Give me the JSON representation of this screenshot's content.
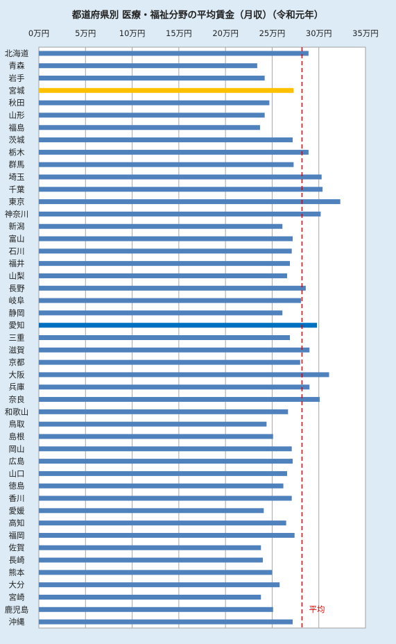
{
  "chart_data": {
    "type": "bar",
    "orientation": "horizontal",
    "title": "都道府県別 医療・福祉分野の平均賃金（月収）（令和元年）",
    "xlabel": "",
    "ylabel": "",
    "xlim": [
      0,
      350000
    ],
    "tick_values": [
      0,
      50000,
      100000,
      150000,
      200000,
      250000,
      300000,
      350000
    ],
    "tick_labels": [
      "0万円",
      "5万円",
      "10万円",
      "15万円",
      "20万円",
      "25万円",
      "30万円",
      "35万円"
    ],
    "grid": true,
    "categories": [
      "北海道",
      "青森",
      "岩手",
      "宮城",
      "秋田",
      "山形",
      "福島",
      "茨城",
      "栃木",
      "群馬",
      "埼玉",
      "千葉",
      "東京",
      "神奈川",
      "新潟",
      "富山",
      "石川",
      "福井",
      "山梨",
      "長野",
      "岐阜",
      "静岡",
      "愛知",
      "三重",
      "滋賀",
      "京都",
      "大阪",
      "兵庫",
      "奈良",
      "和歌山",
      "鳥取",
      "島根",
      "岡山",
      "広島",
      "山口",
      "徳島",
      "香川",
      "愛媛",
      "高知",
      "福岡",
      "佐賀",
      "長崎",
      "熊本",
      "大分",
      "宮崎",
      "鹿児島",
      "沖縄"
    ],
    "values": [
      289000,
      234000,
      242000,
      273000,
      247000,
      242000,
      237000,
      272000,
      289000,
      273000,
      303000,
      304000,
      323000,
      302000,
      261000,
      272000,
      271000,
      269000,
      266000,
      286000,
      281000,
      261000,
      298000,
      269000,
      290000,
      280000,
      311000,
      290000,
      301000,
      267000,
      244000,
      251000,
      271000,
      272000,
      266000,
      262000,
      271000,
      241000,
      265000,
      274000,
      238000,
      240000,
      250000,
      258000,
      238000,
      251000,
      272000
    ],
    "bar_colors": {
      "default": "#4f81bd",
      "宮城": "#ffc000",
      "愛知": "#0070c0"
    },
    "reference_line": {
      "label": "平均",
      "value": 282000,
      "color": "#e00000",
      "style": "dashed"
    }
  }
}
